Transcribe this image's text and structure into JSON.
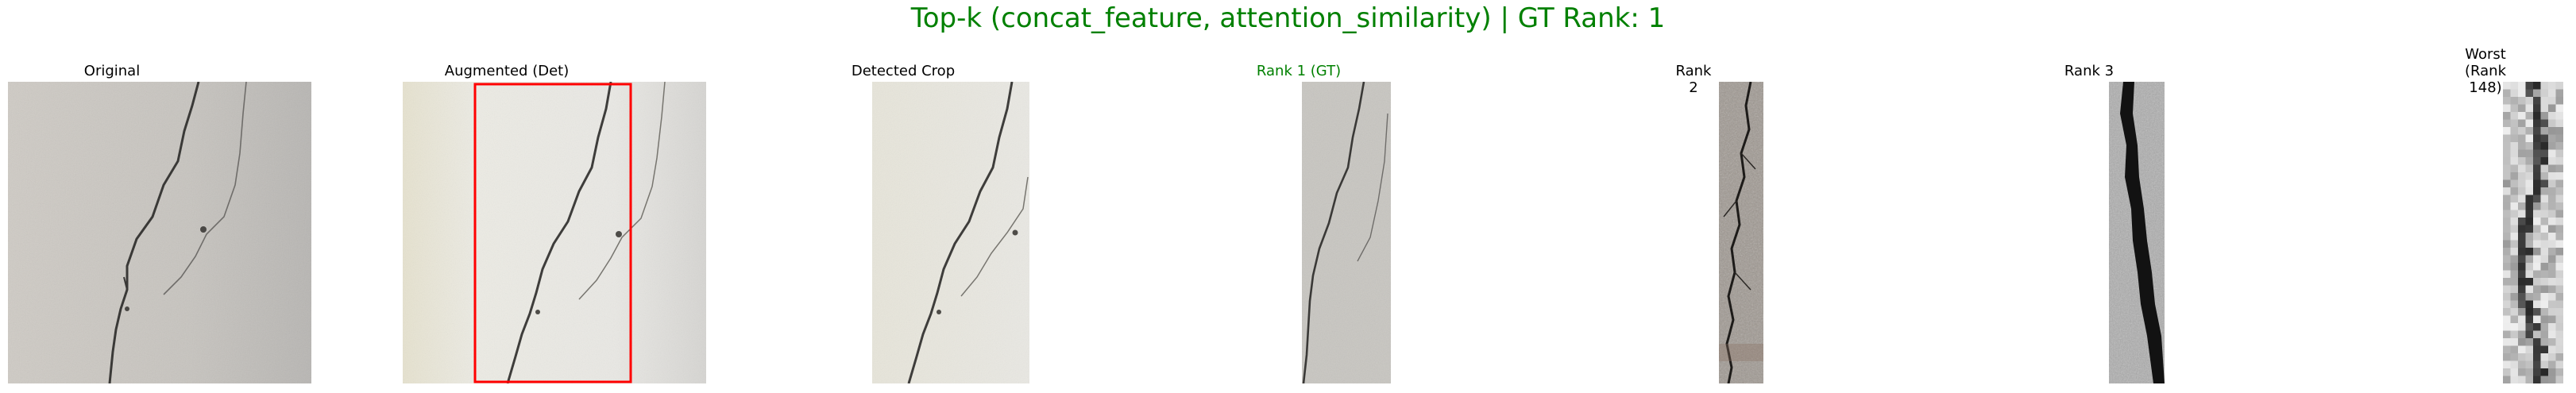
{
  "figure": {
    "title": "Top-k (concat_feature, attention_similarity) | GT Rank: 1",
    "title_color": "#008000",
    "panels": [
      {
        "title": "Original",
        "title_color": "#000000",
        "image": "wall-crack-photo"
      },
      {
        "title": "Augmented (Det)",
        "title_color": "#000000",
        "image": "augmented-wall-crack-photo",
        "box_color": "#ff0000"
      },
      {
        "title": "Detected Crop",
        "title_color": "#000000",
        "image": "detected-crack-crop"
      },
      {
        "title": "Rank 1 (GT)",
        "title_color": "#008000",
        "image": "rank-1-crack-crop"
      },
      {
        "title": "Rank 2",
        "title_color": "#000000",
        "image": "rank-2-crack-crop"
      },
      {
        "title": "Rank 3",
        "title_color": "#000000",
        "image": "rank-3-crack-crop"
      },
      {
        "title": "Worst\n(Rank 148)",
        "title_color": "#000000",
        "image": "worst-crack-crop"
      }
    ]
  }
}
